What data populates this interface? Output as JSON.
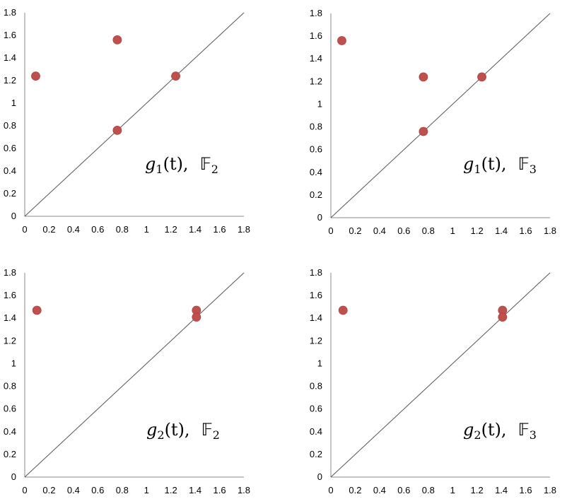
{
  "colors": {
    "point": "#c0504d",
    "point_stroke": "#a9433f",
    "line": "#555555",
    "axis": "#888888"
  },
  "chart_data": [
    {
      "type": "scatter",
      "xlim": [
        0,
        1.8
      ],
      "ylim": [
        0,
        1.8
      ],
      "x_ticks": [
        "0",
        "0.2",
        "0.4",
        "0.6",
        "0.8",
        "1",
        "1.2",
        "1.4",
        "1.6",
        "1.8"
      ],
      "y_ticks": [
        "0",
        "0.2",
        "0.4",
        "0.6",
        "0.8",
        "1",
        "1.2",
        "1.4",
        "1.6",
        "1.8"
      ],
      "diagonal": true,
      "grid": false,
      "points": [
        {
          "x": 0.09,
          "y": 1.24
        },
        {
          "x": 0.76,
          "y": 1.56
        },
        {
          "x": 0.76,
          "y": 0.76
        },
        {
          "x": 1.24,
          "y": 1.24
        }
      ],
      "annotation": {
        "func": "g",
        "sub": "1",
        "arg": "(t),",
        "field": "𝔽",
        "field_sub": "2"
      }
    },
    {
      "type": "scatter",
      "xlim": [
        0,
        1.8
      ],
      "ylim": [
        0,
        1.8
      ],
      "x_ticks": [
        "0",
        "0.2",
        "0.4",
        "0.6",
        "0.8",
        "1",
        "1.2",
        "1.4",
        "1.6",
        "1.8"
      ],
      "y_ticks": [
        "0",
        "0.2",
        "0.4",
        "0.6",
        "0.8",
        "1",
        "1.2",
        "1.4",
        "1.6",
        "1.8"
      ],
      "diagonal": true,
      "grid": false,
      "points": [
        {
          "x": 0.09,
          "y": 1.56
        },
        {
          "x": 0.76,
          "y": 1.24
        },
        {
          "x": 0.76,
          "y": 0.76
        },
        {
          "x": 1.24,
          "y": 1.24
        }
      ],
      "annotation": {
        "func": "g",
        "sub": "1",
        "arg": "(t),",
        "field": "𝔽",
        "field_sub": "3"
      }
    },
    {
      "type": "scatter",
      "xlim": [
        0,
        1.8
      ],
      "ylim": [
        0,
        1.8
      ],
      "x_ticks": [
        "0",
        "0.2",
        "0.4",
        "0.6",
        "0.8",
        "1",
        "1.2",
        "1.4",
        "1.6",
        "1.8"
      ],
      "y_ticks": [
        "0",
        "0.2",
        "0.4",
        "0.6",
        "0.8",
        "1",
        "1.2",
        "1.4",
        "1.6",
        "1.8"
      ],
      "diagonal": true,
      "grid": false,
      "points": [
        {
          "x": 0.1,
          "y": 1.47
        },
        {
          "x": 1.41,
          "y": 1.47
        },
        {
          "x": 1.41,
          "y": 1.41
        }
      ],
      "annotation": {
        "func": "g",
        "sub": "2",
        "arg": "(t),",
        "field": "𝔽",
        "field_sub": "2"
      }
    },
    {
      "type": "scatter",
      "xlim": [
        0,
        1.8
      ],
      "ylim": [
        0,
        1.8
      ],
      "x_ticks": [
        "0",
        "0.2",
        "0.4",
        "0.6",
        "0.8",
        "1",
        "1.2",
        "1.4",
        "1.6",
        "1.8"
      ],
      "y_ticks": [
        "0",
        "0.2",
        "0.4",
        "0.6",
        "0.8",
        "1",
        "1.2",
        "1.4",
        "1.6",
        "1.8"
      ],
      "diagonal": true,
      "grid": false,
      "points": [
        {
          "x": 0.1,
          "y": 1.47
        },
        {
          "x": 1.41,
          "y": 1.47
        },
        {
          "x": 1.41,
          "y": 1.41
        }
      ],
      "annotation": {
        "func": "g",
        "sub": "2",
        "arg": "(t),",
        "field": "𝔽",
        "field_sub": "3"
      }
    }
  ]
}
